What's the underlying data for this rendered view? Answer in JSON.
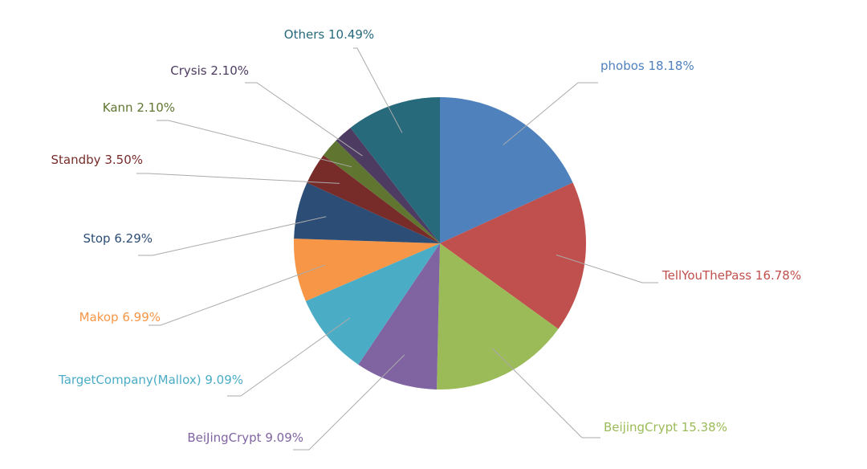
{
  "chart_data": {
    "type": "pie",
    "categories": [
      "phobos",
      "TellYouThePass",
      "BeijingCrypt",
      "BeiJingCrypt",
      "TargetCompany(Mallox)",
      "Makop",
      "Stop",
      "Standby",
      "Kann",
      "Crysis",
      "Others"
    ],
    "values": [
      18.18,
      16.78,
      15.38,
      9.09,
      9.09,
      6.99,
      6.29,
      3.5,
      2.1,
      2.1,
      10.49
    ],
    "value_labels": [
      "18.18%",
      "16.78%",
      "15.38%",
      "9.09%",
      "9.09%",
      "6.99%",
      "6.29%",
      "3.50%",
      "2.10%",
      "2.10%",
      "10.49%"
    ],
    "colors": [
      "#4f81bd",
      "#c0504d",
      "#9bbb59",
      "#8064a2",
      "#4bacc6",
      "#f79646",
      "#2c4d75",
      "#772c2a",
      "#5f7530",
      "#4d3b62",
      "#276a7c"
    ]
  }
}
